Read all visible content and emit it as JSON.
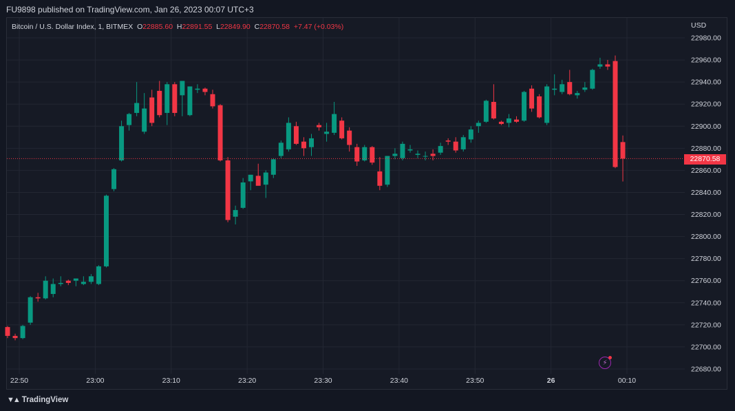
{
  "header": {
    "published": "FU9898 published on TradingView.com, Jan 26, 2023 00:07 UTC+3"
  },
  "legend": {
    "symbol": "Bitcoin / U.S. Dollar Index, 1, BITMEX",
    "o_label": "O",
    "o_value": "22885.60",
    "h_label": "H",
    "h_value": "22891.55",
    "l_label": "L",
    "l_value": "22849.90",
    "c_label": "C",
    "c_value": "22870.58",
    "change": "+7.47 (+0.03%)"
  },
  "axis": {
    "currency": "USD",
    "last_price": "22870.58"
  },
  "footer": {
    "brand": "TradingView"
  },
  "colors": {
    "up": "#089981",
    "down": "#f23645",
    "background": "#161a25",
    "grid": "#232733",
    "text": "#d1d4dc"
  },
  "icons": {
    "logo": "tradingview-logo-icon",
    "alert": "lightning-alert-icon"
  },
  "chart_data": {
    "type": "candlestick",
    "ylim": [
      22670,
      22990
    ],
    "y_ticks": [
      "22980.00",
      "22960.00",
      "22940.00",
      "22920.00",
      "22900.00",
      "22880.00",
      "22860.00",
      "22840.00",
      "22820.00",
      "22800.00",
      "22780.00",
      "22760.00",
      "22740.00",
      "22720.00",
      "22700.00",
      "22680.00"
    ],
    "x_ticks": [
      {
        "label": "22:50",
        "minute": 0
      },
      {
        "label": "23:00",
        "minute": 10
      },
      {
        "label": "23:10",
        "minute": 20
      },
      {
        "label": "23:20",
        "minute": 30
      },
      {
        "label": "23:30",
        "minute": 40
      },
      {
        "label": "23:40",
        "minute": 50
      },
      {
        "label": "23:50",
        "minute": 60
      },
      {
        "label": "26",
        "minute": 70
      },
      {
        "label": "00:10",
        "minute": 80
      }
    ],
    "last_price": 22870.58,
    "candles": [
      [
        22718,
        22719,
        22708,
        22710
      ],
      [
        22710,
        22712,
        22706,
        22708
      ],
      [
        22708,
        22720,
        22707,
        22719
      ],
      [
        22722,
        22746,
        22720,
        22745
      ],
      [
        22745,
        22749,
        22741,
        22744
      ],
      [
        22744,
        22764,
        22743,
        22760
      ],
      [
        22748,
        22762,
        22745,
        22757
      ],
      [
        22757,
        22764,
        22755,
        22758
      ],
      [
        22760,
        22761,
        22756,
        22758
      ],
      [
        22760,
        22762,
        22755,
        22762
      ],
      [
        22757,
        22764,
        22756,
        22759
      ],
      [
        22759,
        22766,
        22757,
        22764
      ],
      [
        22757,
        22774,
        22756,
        22773
      ],
      [
        22773,
        22838,
        22772,
        22837
      ],
      [
        22843,
        22862,
        22841,
        22861
      ],
      [
        22869,
        22905,
        22868,
        22900
      ],
      [
        22901,
        22912,
        22896,
        22911
      ],
      [
        22912,
        22940,
        22909,
        22921
      ],
      [
        22895,
        22930,
        22893,
        22916
      ],
      [
        22926,
        22933,
        22900,
        22903
      ],
      [
        22932,
        22941,
        22908,
        22910
      ],
      [
        22912,
        22940,
        22901,
        22938
      ],
      [
        22938,
        22940,
        22909,
        22912
      ],
      [
        22928,
        22941,
        22909,
        22941
      ],
      [
        22910,
        22936,
        22909,
        22936
      ],
      [
        22933,
        22938,
        22930,
        22934
      ],
      [
        22934,
        22935,
        22928,
        22931
      ],
      [
        22929,
        22933,
        22916,
        22918
      ],
      [
        22919,
        22920,
        22868,
        22869
      ],
      [
        22869,
        22872,
        22813,
        22815
      ],
      [
        22818,
        22828,
        22811,
        22824
      ],
      [
        22826,
        22853,
        22825,
        22849
      ],
      [
        22850,
        22856,
        22842,
        22856
      ],
      [
        22855,
        22866,
        22847,
        22846
      ],
      [
        22847,
        22860,
        22835,
        22858
      ],
      [
        22856,
        22871,
        22853,
        22870
      ],
      [
        22873,
        22887,
        22871,
        22885
      ],
      [
        22879,
        22908,
        22877,
        22903
      ],
      [
        22900,
        22904,
        22883,
        22884
      ],
      [
        22886,
        22890,
        22873,
        22880
      ],
      [
        22881,
        22893,
        22873,
        22889
      ],
      [
        22901,
        22903,
        22896,
        22899
      ],
      [
        22893,
        22903,
        22886,
        22895
      ],
      [
        22894,
        22922,
        22892,
        22911
      ],
      [
        22905,
        22908,
        22888,
        22889
      ],
      [
        22896,
        22899,
        22877,
        22883
      ],
      [
        22881,
        22884,
        22864,
        22868
      ],
      [
        22869,
        22883,
        22868,
        22881
      ],
      [
        22881,
        22882,
        22865,
        22867
      ],
      [
        22859,
        22872,
        22842,
        22846
      ],
      [
        22847,
        22873,
        22845,
        22873
      ],
      [
        22873,
        22880,
        22870,
        22875
      ],
      [
        22871,
        22886,
        22869,
        22884
      ],
      [
        22878,
        22883,
        22876,
        22879
      ],
      [
        22874,
        22878,
        22871,
        22875
      ],
      [
        22873,
        22877,
        22869,
        22873
      ],
      [
        22875,
        22879,
        22869,
        22873
      ],
      [
        22876,
        22885,
        22874,
        22882
      ],
      [
        22887,
        22889,
        22883,
        22886
      ],
      [
        22886,
        22890,
        22876,
        22878
      ],
      [
        22879,
        22892,
        22877,
        22890
      ],
      [
        22888,
        22900,
        22885,
        22897
      ],
      [
        22900,
        22905,
        22894,
        22903
      ],
      [
        22904,
        22924,
        22903,
        22923
      ],
      [
        22922,
        22938,
        22906,
        22907
      ],
      [
        22904,
        22905,
        22901,
        22902
      ],
      [
        22903,
        22911,
        22899,
        22907
      ],
      [
        22906,
        22909,
        22903,
        22904
      ],
      [
        22905,
        22932,
        22904,
        22931
      ],
      [
        22934,
        22937,
        22913,
        22916
      ],
      [
        22927,
        22929,
        22907,
        22908
      ],
      [
        22903,
        22938,
        22901,
        22936
      ],
      [
        22933,
        22947,
        22928,
        22934
      ],
      [
        22931,
        22942,
        22929,
        22938
      ],
      [
        22940,
        22951,
        22928,
        22929
      ],
      [
        22928,
        22932,
        22925,
        22930
      ],
      [
        22933,
        22940,
        22931,
        22935
      ],
      [
        22934,
        22952,
        22933,
        22951
      ],
      [
        22954,
        22962,
        22952,
        22956
      ],
      [
        22956,
        22960,
        22951,
        22954
      ],
      [
        22959,
        22964,
        22862,
        22863
      ],
      [
        22885.6,
        22891.55,
        22849.9,
        22870.58
      ]
    ]
  }
}
